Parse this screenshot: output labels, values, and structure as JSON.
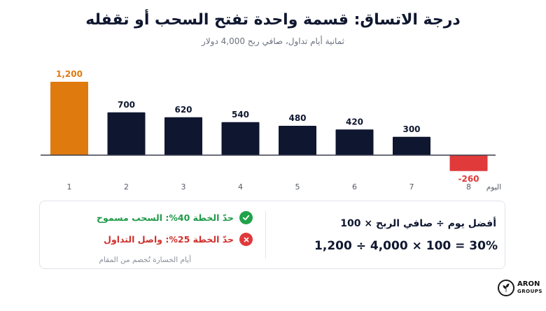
{
  "title": "درجة الاتساق: قسمة واحدة تفتح السحب أو تقفله",
  "subtitle": "ثمانية أيام تداول، صافي ربح 4,000 دولار",
  "chart_data": {
    "type": "bar",
    "title": "درجة الاتساق: قسمة واحدة تفتح السحب أو تقفله",
    "subtitle": "ثمانية أيام تداول، صافي ربح 4,000 دولار",
    "xlabel": "اليوم",
    "ylabel": "",
    "categories": [
      "1",
      "2",
      "3",
      "4",
      "5",
      "6",
      "7",
      "8"
    ],
    "values": [
      1200,
      700,
      620,
      540,
      480,
      420,
      300,
      -260
    ],
    "value_labels": [
      "1,200",
      "700",
      "620",
      "540",
      "480",
      "420",
      "300",
      "-260"
    ],
    "ylim": [
      -300,
      1250
    ],
    "grid": false,
    "colors": {
      "best_day": "#df7a0e",
      "regular": "#0f1730",
      "loss": "#e03a3a",
      "axis": "#3a3f4a"
    },
    "highlight_index": 0
  },
  "panel": {
    "formula_label": "أفضل يوم ÷ صافي الربح × 100",
    "formula_result": "1,200 ÷ 4,000 × 100 = 30%",
    "rule_ok": "حدّ الخطة 40%: السحب مسموح",
    "rule_bad": "حدّ الخطة 25%: واصل التداول",
    "note": "أيام الخسارة تُخصم من المقام",
    "ok_icon": "check-circle-icon",
    "bad_icon": "x-circle-icon"
  },
  "logo": {
    "main": "ARON",
    "sub": "GROUPS",
    "icon": "leaf-logo-icon"
  }
}
